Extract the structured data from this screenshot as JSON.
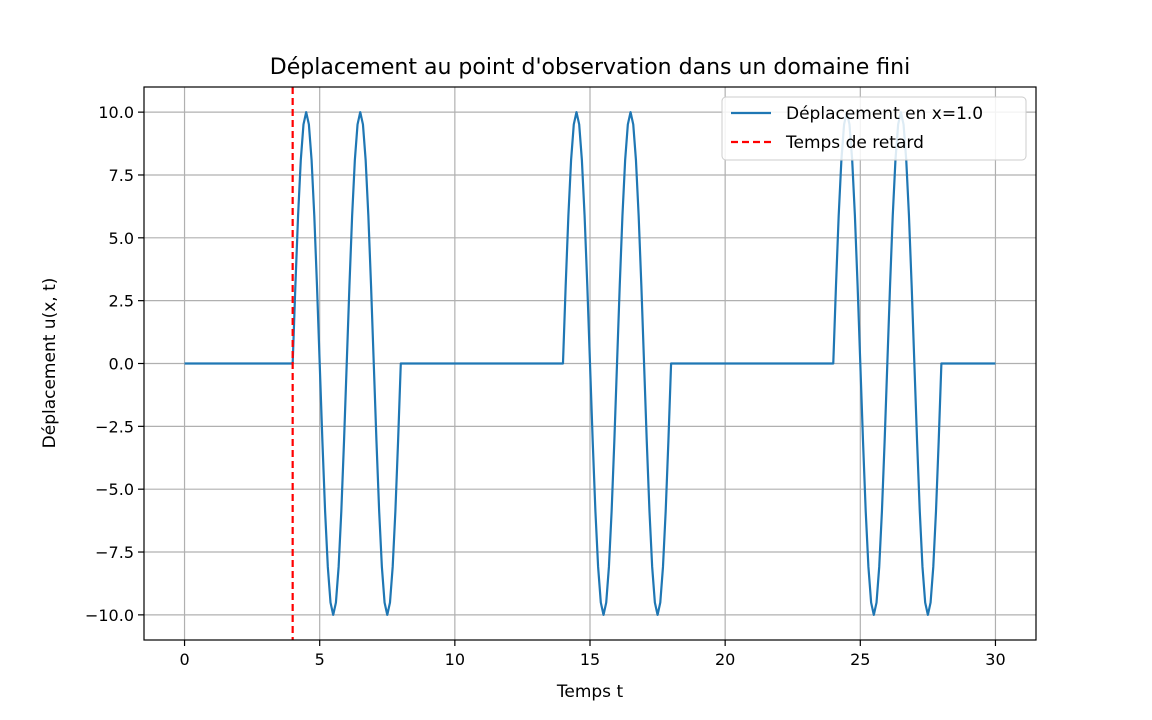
{
  "chart_data": {
    "type": "line",
    "title": "Déplacement au point d'observation dans un domaine fini",
    "xlabel": "Temps t",
    "ylabel": "Déplacement u(x, t)",
    "xlim": [
      -1.5,
      31.5
    ],
    "ylim": [
      -11,
      11
    ],
    "xticks": [
      0,
      5,
      10,
      15,
      20,
      25,
      30
    ],
    "xtick_labels": [
      "0",
      "5",
      "10",
      "15",
      "20",
      "25",
      "30"
    ],
    "yticks": [
      10,
      7.5,
      5,
      2.5,
      0,
      -2.5,
      -5,
      -7.5,
      -10
    ],
    "ytick_labels": [
      "10.0",
      "7.5",
      "5.0",
      "2.5",
      "0.0",
      "−2.5",
      "−5.0",
      "−7.5",
      "−10.0"
    ],
    "grid": true,
    "legend_position": "top-right",
    "series": [
      {
        "name": "Déplacement en x=1.0",
        "color": "#1f77b4",
        "style": "solid",
        "pulse_windows": [
          [
            4,
            8
          ],
          [
            14,
            18
          ],
          [
            24,
            28
          ]
        ],
        "amplitude": 10,
        "period": 2,
        "t_start": 0,
        "t_end": 30
      },
      {
        "name": "Temps de retard",
        "color": "#ff0000",
        "style": "dashed",
        "vline_x": 4
      }
    ]
  }
}
